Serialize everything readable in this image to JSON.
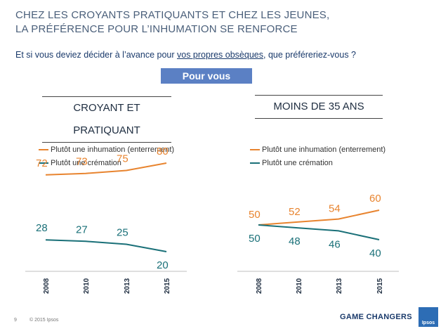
{
  "header": {
    "title_line1": "CHEZ LES CROYANTS PRATIQUANTS ET CHEZ LES JEUNES,",
    "title_line2": "LA PRÉFÉRENCE POUR L’INHUMATION SE RENFORCE",
    "question_before": "Et si vous deviez décider à l’avance pour ",
    "question_underlined": "vos propres obsèques",
    "question_after": ", que préféreriez-vous ?",
    "banner": "Pour vous"
  },
  "colors": {
    "inhumation": "#e8842f",
    "cremation": "#1a7078",
    "text": "#1e2d40"
  },
  "chart_data": [
    {
      "type": "line",
      "title": "CROYANT ET PRATIQUANT",
      "x": [
        "2008",
        "2010",
        "2013",
        "2015"
      ],
      "series": [
        {
          "name": "Plutôt une inhumation (enterrement)",
          "values": [
            72,
            73,
            75,
            80
          ]
        },
        {
          "name": "Plutôt une crémation",
          "values": [
            28,
            27,
            25,
            20
          ]
        }
      ],
      "ylim": [
        0,
        100
      ],
      "grid": false,
      "legend": "top-left"
    },
    {
      "type": "line",
      "title": "MOINS DE 35 ANS",
      "x": [
        "2008",
        "2010",
        "2013",
        "2015"
      ],
      "series": [
        {
          "name": "Plutôt une inhumation (enterrement)",
          "values": [
            50,
            52,
            54,
            60
          ]
        },
        {
          "name": "Plutôt une crémation",
          "values": [
            50,
            48,
            46,
            40
          ]
        }
      ],
      "ylim": [
        0,
        100
      ],
      "grid": false,
      "legend": "top-left"
    }
  ],
  "footer": {
    "page": "9",
    "copyright": "© 2015 Ipsos",
    "brand": "GAME CHANGERS",
    "logo": "Ipsos"
  }
}
